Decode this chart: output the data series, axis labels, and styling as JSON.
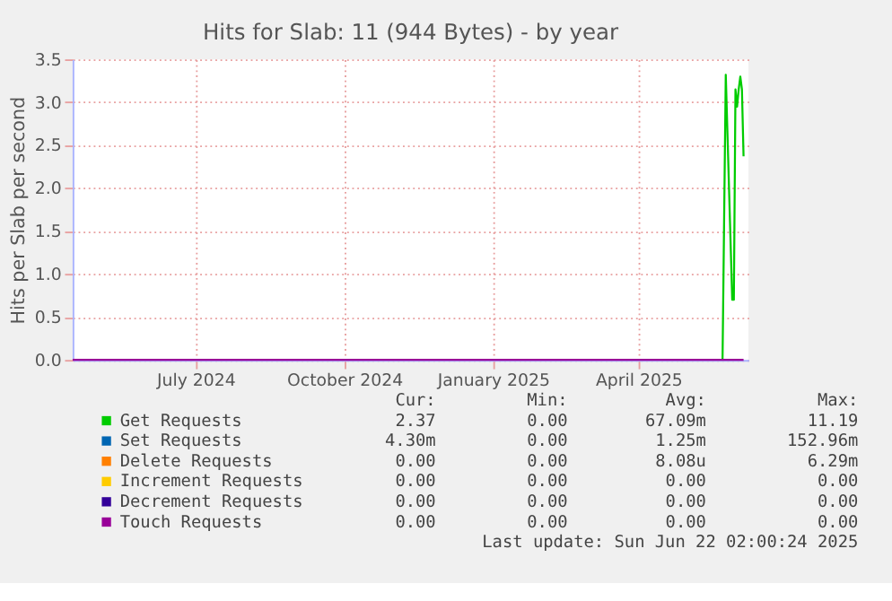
{
  "chart_data": {
    "type": "line",
    "title": "Hits for Slab: 11 (944 Bytes) - by year",
    "ylabel": "Hits per Slab per second",
    "x": [
      "2024-04-30",
      "2025-06-06",
      "2025-06-08",
      "2025-06-12",
      "2025-06-13",
      "2025-06-14",
      "2025-06-15",
      "2025-06-16",
      "2025-06-17",
      "2025-06-18",
      "2025-06-19"
    ],
    "series": [
      {
        "name": "Get Requests",
        "color": "#00cc00",
        "values": [
          null,
          0,
          3.32,
          0.7,
          0.7,
          3.15,
          2.95,
          3.15,
          3.3,
          3.15,
          2.37
        ]
      },
      {
        "name": "Set Requests",
        "color": "#0066b3",
        "values": [
          null,
          null,
          null,
          null,
          null,
          null,
          null,
          null,
          null,
          null,
          null
        ]
      },
      {
        "name": "Delete Requests",
        "color": "#ff8000",
        "values": [
          null,
          null,
          null,
          null,
          null,
          null,
          null,
          null,
          null,
          null,
          null
        ]
      },
      {
        "name": "Increment Requests",
        "color": "#ffcc00",
        "values": [
          null,
          null,
          null,
          null,
          null,
          null,
          null,
          null,
          null,
          null,
          null
        ]
      },
      {
        "name": "Decrement Requests",
        "color": "#330099",
        "values": [
          null,
          null,
          null,
          null,
          null,
          null,
          null,
          null,
          null,
          null,
          null
        ]
      },
      {
        "name": "Touch Requests",
        "color": "#990099",
        "values": [
          0,
          0,
          0,
          0,
          0,
          0,
          0,
          0,
          0,
          0,
          0
        ]
      }
    ],
    "xlim": [
      "2024-04-30",
      "2025-06-22"
    ],
    "xticks": [
      {
        "value": "2024-07-15",
        "label": "July 2024"
      },
      {
        "value": "2024-10-15",
        "label": "October 2024"
      },
      {
        "value": "2025-01-15",
        "label": "January 2025"
      },
      {
        "value": "2025-04-15",
        "label": "April 2025"
      }
    ],
    "ylim": [
      0,
      3.5
    ],
    "yticks": [
      {
        "value": 0,
        "label": "0.0"
      },
      {
        "value": 0.5,
        "label": "0.5"
      },
      {
        "value": 1,
        "label": "1.0"
      },
      {
        "value": 1.5,
        "label": "1.5"
      },
      {
        "value": 2,
        "label": "2.0"
      },
      {
        "value": 2.5,
        "label": "2.5"
      },
      {
        "value": 3,
        "label": "3.0"
      },
      {
        "value": 3.5,
        "label": "3.5"
      }
    ],
    "grid": true,
    "legend": "bottom",
    "line_style": "solid",
    "marker": "none",
    "annotations": [
      "Cur:",
      "Min:",
      "Avg:",
      "Max:",
      "2.37",
      "0.00",
      "67.09m",
      "11.19",
      "4.30m",
      "0.00",
      "1.25m",
      "152.96m",
      "0.00",
      "0.00",
      "8.08u",
      "6.29m",
      "0.00",
      "0.00",
      "0.00",
      "0.00",
      "0.00",
      "0.00",
      "0.00",
      "0.00",
      "0.00",
      "0.00",
      "0.00",
      "0.00",
      "Last update: Sun Jun 22 02:00:24 2025"
    ]
  }
}
